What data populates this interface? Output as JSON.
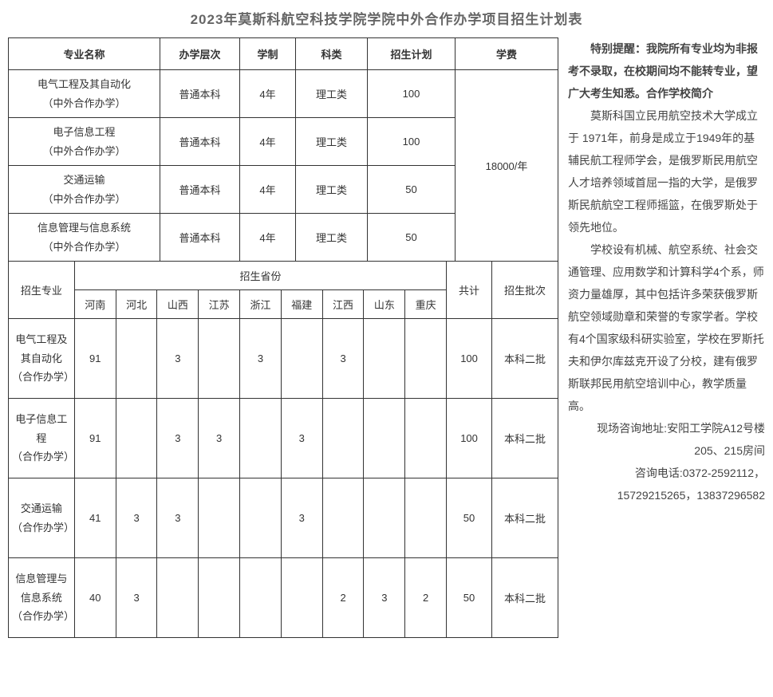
{
  "title": "2023年莫斯科航空科技学院学院中外合作办学项目招生计划表",
  "table1": {
    "headers": [
      "专业名称",
      "办学层次",
      "学制",
      "科类",
      "招生计划",
      "学费"
    ],
    "rows": [
      {
        "major": "电气工程及其自动化\n（中外合作办学）",
        "level": "普通本科",
        "duration": "4年",
        "category": "理工类",
        "plan": "100"
      },
      {
        "major": "电子信息工程\n（中外合作办学）",
        "level": "普通本科",
        "duration": "4年",
        "category": "理工类",
        "plan": "100"
      },
      {
        "major": "交通运输\n（中外合作办学）",
        "level": "普通本科",
        "duration": "4年",
        "category": "理工类",
        "plan": "50"
      },
      {
        "major": "信息管理与信息系统\n（中外合作办学）",
        "level": "普通本科",
        "duration": "4年",
        "category": "理工类",
        "plan": "50"
      }
    ],
    "tuition": "18000/年"
  },
  "table2": {
    "label_major": "招生专业",
    "label_provinces": "招生省份",
    "label_total": "共计",
    "label_batch": "招生批次",
    "provinces": [
      "河南",
      "河北",
      "山西",
      "江苏",
      "浙江",
      "福建",
      "江西",
      "山东",
      "重庆"
    ],
    "rows": [
      {
        "major": "电气工程及其自动化（合作办学）",
        "vals": [
          "91",
          "",
          "3",
          "",
          "3",
          "",
          "3",
          "",
          ""
        ],
        "total": "100",
        "batch": "本科二批"
      },
      {
        "major": "电子信息工程\n（合作办学）",
        "vals": [
          "91",
          "",
          "3",
          "3",
          "",
          "3",
          "",
          "",
          ""
        ],
        "total": "100",
        "batch": "本科二批"
      },
      {
        "major": "交通运输（合作办学）",
        "vals": [
          "41",
          "3",
          "3",
          "",
          "",
          "3",
          "",
          "",
          ""
        ],
        "total": "50",
        "batch": "本科二批"
      },
      {
        "major": "信息管理与信息系统（合作办学）",
        "vals": [
          "40",
          "3",
          "",
          "",
          "",
          "",
          "2",
          "3",
          "2"
        ],
        "total": "50",
        "batch": "本科二批"
      }
    ]
  },
  "side": {
    "notice_label": "特别提醒：",
    "notice_text": "我院所有专业均为非报考不录取，在校期间均不能转专业，望广大考生知悉。",
    "school_intro_label": "合作学校简介",
    "para1": "莫斯科国立民用航空技术大学成立于 1971年，前身是成立于1949年的基辅民航工程师学会，是俄罗斯民用航空人才培养领域首屈一指的大学，是俄罗斯民航航空工程师摇篮，在俄罗斯处于领先地位。",
    "para2": "学校设有机械、航空系统、社会交通管理、应用数学和计算科学4个系，师资力量雄厚，其中包括许多荣获俄罗斯航空领域勋章和荣誉的专家学者。学校有4个国家级科研实验室，学校在罗斯托夫和伊尔库兹克开设了分校，建有俄罗斯联邦民用航空培训中心，教学质量高。",
    "addr": "现场咨询地址:安阳工学院A12号楼205、215房间",
    "phone": "咨询电话:0372-2592112，15729215265，13837296582"
  }
}
